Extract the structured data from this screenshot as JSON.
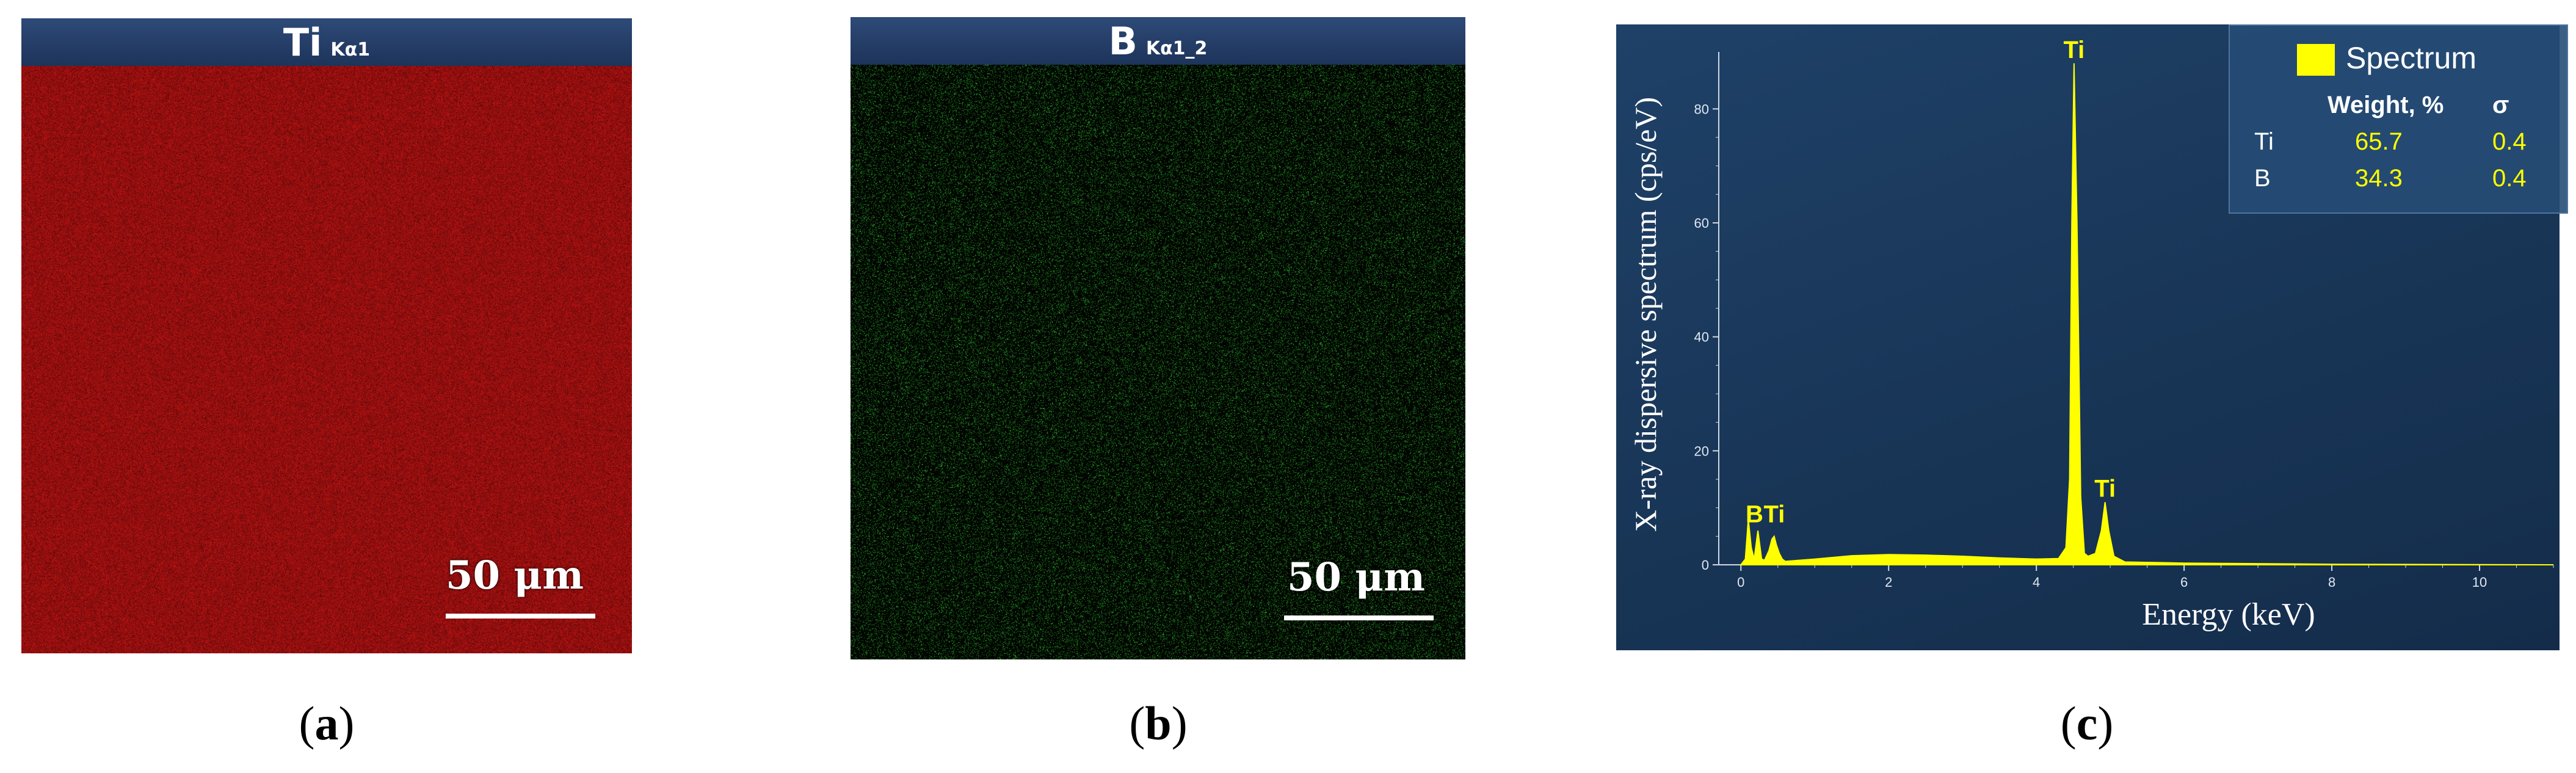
{
  "panels": {
    "a": {
      "element": "Ti",
      "line": "Kα1",
      "scale_bar": "50 μm",
      "caption_letter": "a",
      "color": "#c81414"
    },
    "b": {
      "element": "B",
      "line": "Kα1_2",
      "scale_bar": "50 μm",
      "caption_letter": "b",
      "color": "#2fbf2f"
    },
    "c": {
      "caption_letter": "c"
    }
  },
  "chart_data": {
    "type": "area",
    "xlabel": "Energy (keV)",
    "ylabel": "X-ray dispersive spectrum (cps/eV)",
    "xlim": [
      -0.3,
      11
    ],
    "ylim": [
      0,
      90
    ],
    "xticks": [
      0,
      2,
      4,
      6,
      8,
      10
    ],
    "yticks": [
      0,
      20,
      40,
      60,
      80
    ],
    "series": [
      {
        "name": "Spectrum",
        "color": "#ffff00",
        "x": [
          0.0,
          0.06,
          0.1,
          0.14,
          0.18,
          0.23,
          0.28,
          0.32,
          0.38,
          0.42,
          0.45,
          0.48,
          0.52,
          0.56,
          0.6,
          0.8,
          1.0,
          1.5,
          2.0,
          2.5,
          3.0,
          3.5,
          4.0,
          4.3,
          4.4,
          4.45,
          4.48,
          4.51,
          4.55,
          4.6,
          4.65,
          4.7,
          4.8,
          4.88,
          4.93,
          4.98,
          5.05,
          5.2,
          6.0,
          8.0,
          11.0
        ],
        "y": [
          0,
          1,
          8,
          3,
          1,
          6,
          1,
          0.8,
          2.5,
          4.5,
          5,
          3.5,
          2,
          1,
          0.6,
          0.8,
          1,
          1.6,
          1.8,
          1.7,
          1.5,
          1.2,
          1.0,
          1.1,
          3,
          15,
          60,
          88,
          60,
          12,
          2,
          1.5,
          2,
          6,
          11,
          6,
          1.5,
          0.5,
          0.3,
          0.1,
          0
        ]
      }
    ],
    "peak_labels": [
      {
        "text": "B",
        "x": 0.183,
        "y": 7
      },
      {
        "text": "Ti",
        "x": 0.452,
        "y": 7
      },
      {
        "text": "Ti",
        "x": 4.51,
        "y": 88.5
      },
      {
        "text": "Ti",
        "x": 4.93,
        "y": 11.5
      }
    ],
    "legend": {
      "title": "Spectrum",
      "headers": [
        "Weight, %",
        "σ"
      ],
      "rows": [
        {
          "element": "Ti",
          "weight": "65.7",
          "sigma": "0.4"
        },
        {
          "element": "B",
          "weight": "34.3",
          "sigma": "0.4"
        }
      ]
    }
  }
}
